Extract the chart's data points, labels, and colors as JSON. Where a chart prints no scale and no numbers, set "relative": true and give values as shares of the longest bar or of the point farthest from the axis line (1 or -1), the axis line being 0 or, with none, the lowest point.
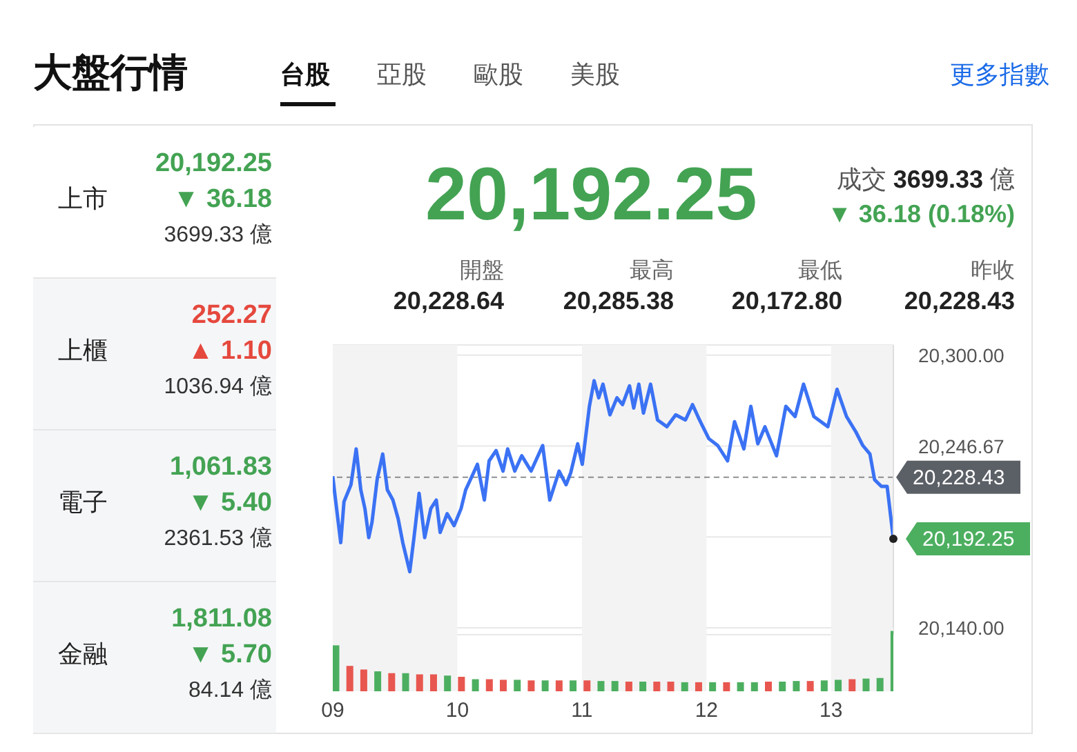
{
  "chart_data": [
    {
      "type": "other",
      "title": "大盤行情",
      "annotations": [
        "台股",
        "亞股",
        "歐股",
        "美股",
        "更多指數"
      ]
    },
    {
      "type": "other",
      "annotations": [
        "上市",
        "20,192.25",
        "▼ 36.18",
        "3699.33 億",
        "上櫃",
        "252.27",
        "▲ 1.10",
        "1036.94 億",
        "電子",
        "1,061.83",
        "▼ 5.40",
        "2361.53 億",
        "金融",
        "1,811.08",
        "▼ 5.70",
        "84.14 億"
      ],
      "colors": [
        "#43a353",
        "#e5483d",
        "#43a353",
        "#43a353"
      ]
    },
    {
      "type": "other",
      "annotations": [
        "20,192.25",
        "成交",
        "3699.33",
        "億",
        "▼ 36.18 (0.18%)",
        "開盤",
        "20,228.64",
        "最高",
        "20,285.38",
        "最低",
        "20,172.80",
        "昨收",
        "20,228.43"
      ],
      "colors": [
        "#43a353"
      ]
    },
    {
      "type": "line",
      "color": "#3b72f4",
      "marker": "none",
      "line_style": "solid",
      "grid": "y",
      "tick_labels": "y",
      "x": [
        9.0,
        9.019,
        9.064,
        9.09,
        9.146,
        9.188,
        9.225,
        9.258,
        9.289,
        9.315,
        9.356,
        9.401,
        9.438,
        9.483,
        9.525,
        9.562,
        9.618,
        9.652,
        9.693,
        9.738,
        9.787,
        9.831,
        9.862,
        9.918,
        9.974,
        10.03,
        10.067,
        10.124,
        10.161,
        10.217,
        10.255,
        10.311,
        10.367,
        10.404,
        10.461,
        10.517,
        10.592,
        10.685,
        10.742,
        10.817,
        10.873,
        10.91,
        10.966,
        11.003,
        11.06,
        11.098,
        11.135,
        11.169,
        11.225,
        11.281,
        11.326,
        11.382,
        11.416,
        11.457,
        11.494,
        11.551,
        11.607,
        11.682,
        11.753,
        11.831,
        11.888,
        11.944,
        12.019,
        12.09,
        12.169,
        12.225,
        12.3,
        12.356,
        12.412,
        12.469,
        12.562,
        12.637,
        12.711,
        12.779,
        12.862,
        12.974,
        13.048,
        13.124,
        13.199,
        13.255,
        13.312,
        13.349,
        13.404,
        13.45,
        13.5
      ],
      "values": [
        20229,
        20217,
        20190,
        20214,
        20224,
        20245,
        20221,
        20210,
        20193,
        20202,
        20227,
        20242,
        20221,
        20215,
        20204,
        20190,
        20173,
        20193,
        20219,
        20193,
        20210,
        20215,
        20196,
        20207,
        20200,
        20210,
        20221,
        20230,
        20236,
        20215,
        20238,
        20244,
        20232,
        20245,
        20232,
        20241,
        20232,
        20247,
        20215,
        20232,
        20224,
        20231,
        20248,
        20236,
        20270,
        20285,
        20275,
        20283,
        20265,
        20275,
        20271,
        20282,
        20269,
        20283,
        20266,
        20283,
        20262,
        20258,
        20265,
        20262,
        20271,
        20262,
        20251,
        20247,
        20238,
        20261,
        20245,
        20270,
        20248,
        20258,
        20241,
        20270,
        20264,
        20283,
        20264,
        20258,
        20280,
        20264,
        20255,
        20247,
        20242,
        20227,
        20223,
        20223,
        20192.25
      ],
      "xlim": [
        9,
        13.5
      ],
      "ylim": [
        20136,
        20306
      ],
      "yticks": [
        {
          "value": 20300,
          "label": "20,300.00"
        },
        {
          "value": 20246.67,
          "label": "20,246.67"
        },
        {
          "value": 20193.33,
          "label": null
        },
        {
          "value": 20140,
          "label": "20,140.00"
        }
      ],
      "ref_lines": [
        {
          "axis": "y",
          "value": 20228.43,
          "label": "20,228.43",
          "color": "#5b5f66",
          "line_style": "dashed"
        }
      ],
      "bands": [
        {
          "axis": "x",
          "from": 9,
          "to": 10,
          "color": "#f3f3f3"
        },
        {
          "axis": "x",
          "from": 11,
          "to": 12,
          "color": "#f3f3f3"
        },
        {
          "axis": "x",
          "from": 13,
          "to": 13.5,
          "color": "#f3f3f3"
        }
      ],
      "annotations": [
        {
          "text": "20,192.25",
          "x": 13.5,
          "y": 20192.25
        }
      ]
    },
    {
      "type": "bar",
      "relative": true,
      "tick_labels": "x",
      "x": [
        9.02,
        9.132,
        9.244,
        9.356,
        9.468,
        9.58,
        9.692,
        9.804,
        9.916,
        10.028,
        10.14,
        10.252,
        10.364,
        10.476,
        10.588,
        10.7,
        10.812,
        10.924,
        11.036,
        11.148,
        11.26,
        11.372,
        11.484,
        11.596,
        11.708,
        11.82,
        11.932,
        12.044,
        12.156,
        12.268,
        12.38,
        12.492,
        12.604,
        12.716,
        12.828,
        12.94,
        13.052,
        13.164,
        13.276,
        13.388,
        13.5
      ],
      "values": [
        0.76,
        0.42,
        0.36,
        0.33,
        0.3,
        0.3,
        0.28,
        0.28,
        0.26,
        0.24,
        0.2,
        0.2,
        0.19,
        0.19,
        0.18,
        0.18,
        0.18,
        0.18,
        0.18,
        0.17,
        0.17,
        0.16,
        0.16,
        0.16,
        0.16,
        0.15,
        0.15,
        0.15,
        0.15,
        0.15,
        0.15,
        0.16,
        0.16,
        0.17,
        0.17,
        0.18,
        0.19,
        0.2,
        0.21,
        0.22,
        1.0
      ],
      "colors": [
        "#4caf60",
        "#e8574f",
        "#e8574f",
        "#4caf60",
        "#e8574f",
        "#4caf60",
        "#e8574f",
        "#e8574f",
        "#4caf60",
        "#e8574f",
        "#4caf60",
        "#e8574f",
        "#e8574f",
        "#4caf60",
        "#e8574f",
        "#4caf60",
        "#e8574f",
        "#4caf60",
        "#e8574f",
        "#4caf60",
        "#4caf60",
        "#e8574f",
        "#4caf60",
        "#e8574f",
        "#e8574f",
        "#4caf60",
        "#e8574f",
        "#4caf60",
        "#e8574f",
        "#4caf60",
        "#4caf60",
        "#e8574f",
        "#4caf60",
        "#4caf60",
        "#e8574f",
        "#4caf60",
        "#4caf60",
        "#e8574f",
        "#4caf60",
        "#4caf60",
        "#4caf60"
      ],
      "xlim": [
        9,
        13.5
      ],
      "xticks": [
        {
          "value": 9,
          "label": "09"
        },
        {
          "value": 10,
          "label": "10"
        },
        {
          "value": 11,
          "label": "11"
        },
        {
          "value": 12,
          "label": "12"
        },
        {
          "value": 13,
          "label": "13"
        }
      ],
      "bands": [
        {
          "axis": "x",
          "from": 9,
          "to": 10,
          "color": "#f3f3f3"
        },
        {
          "axis": "x",
          "from": 11,
          "to": 12,
          "color": "#f3f3f3"
        },
        {
          "axis": "x",
          "from": 13,
          "to": 13.5,
          "color": "#f3f3f3"
        }
      ]
    }
  ]
}
